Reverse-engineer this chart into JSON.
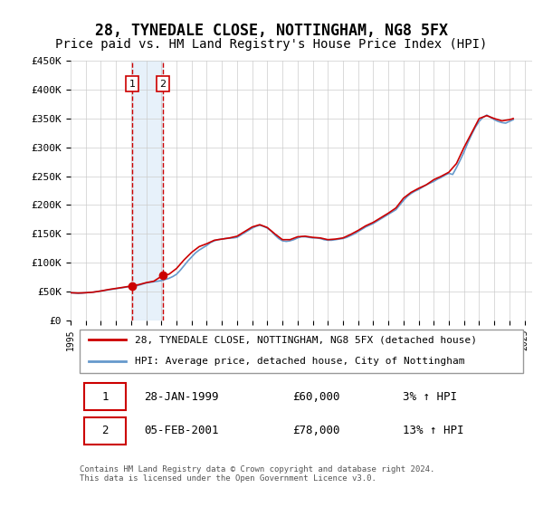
{
  "title": "28, TYNEDALE CLOSE, NOTTINGHAM, NG8 5FX",
  "subtitle": "Price paid vs. HM Land Registry's House Price Index (HPI)",
  "title_fontsize": 12,
  "subtitle_fontsize": 10,
  "ylabel_ticks": [
    "£0",
    "£50K",
    "£100K",
    "£150K",
    "£200K",
    "£250K",
    "£300K",
    "£350K",
    "£400K",
    "£450K"
  ],
  "ylim": [
    0,
    450000
  ],
  "ytick_vals": [
    0,
    50000,
    100000,
    150000,
    200000,
    250000,
    300000,
    350000,
    400000,
    450000
  ],
  "xmin": 1995.0,
  "xmax": 2025.5,
  "sale1_x": 1999.08,
  "sale1_y": 60000,
  "sale1_label": "1",
  "sale2_x": 2001.09,
  "sale2_y": 78000,
  "sale2_label": "2",
  "red_line_color": "#cc0000",
  "blue_line_color": "#6699cc",
  "shade_color": "#d0e4f7",
  "dashed_color": "#cc0000",
  "legend_label_red": "28, TYNEDALE CLOSE, NOTTINGHAM, NG8 5FX (detached house)",
  "legend_label_blue": "HPI: Average price, detached house, City of Nottingham",
  "table_row1": [
    "1",
    "28-JAN-1999",
    "£60,000",
    "3% ↑ HPI"
  ],
  "table_row2": [
    "2",
    "05-FEB-2001",
    "£78,000",
    "13% ↑ HPI"
  ],
  "footer": "Contains HM Land Registry data © Crown copyright and database right 2024.\nThis data is licensed under the Open Government Licence v3.0.",
  "hpi_data": {
    "years": [
      1995.0,
      1995.25,
      1995.5,
      1995.75,
      1996.0,
      1996.25,
      1996.5,
      1996.75,
      1997.0,
      1997.25,
      1997.5,
      1997.75,
      1998.0,
      1998.25,
      1998.5,
      1998.75,
      1999.0,
      1999.25,
      1999.5,
      1999.75,
      2000.0,
      2000.25,
      2000.5,
      2000.75,
      2001.0,
      2001.25,
      2001.5,
      2001.75,
      2002.0,
      2002.25,
      2002.5,
      2002.75,
      2003.0,
      2003.25,
      2003.5,
      2003.75,
      2004.0,
      2004.25,
      2004.5,
      2004.75,
      2005.0,
      2005.25,
      2005.5,
      2005.75,
      2006.0,
      2006.25,
      2006.5,
      2006.75,
      2007.0,
      2007.25,
      2007.5,
      2007.75,
      2008.0,
      2008.25,
      2008.5,
      2008.75,
      2009.0,
      2009.25,
      2009.5,
      2009.75,
      2010.0,
      2010.25,
      2010.5,
      2010.75,
      2011.0,
      2011.25,
      2011.5,
      2011.75,
      2012.0,
      2012.25,
      2012.5,
      2012.75,
      2013.0,
      2013.25,
      2013.5,
      2013.75,
      2014.0,
      2014.25,
      2014.5,
      2014.75,
      2015.0,
      2015.25,
      2015.5,
      2015.75,
      2016.0,
      2016.25,
      2016.5,
      2016.75,
      2017.0,
      2017.25,
      2017.5,
      2017.75,
      2018.0,
      2018.25,
      2018.5,
      2018.75,
      2019.0,
      2019.25,
      2019.5,
      2019.75,
      2020.0,
      2020.25,
      2020.5,
      2020.75,
      2021.0,
      2021.25,
      2021.5,
      2021.75,
      2022.0,
      2022.25,
      2022.5,
      2022.75,
      2023.0,
      2023.25,
      2023.5,
      2023.75,
      2024.0,
      2024.25
    ],
    "values": [
      48000,
      47500,
      47000,
      47200,
      48000,
      48500,
      49000,
      50000,
      51000,
      52000,
      53000,
      54000,
      55000,
      56000,
      57000,
      58000,
      58500,
      59500,
      61000,
      63000,
      65000,
      66000,
      67000,
      68000,
      69000,
      71000,
      73000,
      76000,
      80000,
      87000,
      95000,
      103000,
      110000,
      117000,
      122000,
      126000,
      130000,
      135000,
      138000,
      140000,
      141000,
      142000,
      142500,
      143000,
      144000,
      148000,
      152000,
      156000,
      160000,
      163000,
      165000,
      163000,
      160000,
      155000,
      148000,
      142000,
      138000,
      137000,
      138000,
      140000,
      143000,
      145000,
      145000,
      144000,
      143000,
      143000,
      142000,
      140000,
      139000,
      139000,
      140000,
      141000,
      142000,
      144000,
      147000,
      150000,
      154000,
      158000,
      162000,
      165000,
      168000,
      172000,
      176000,
      180000,
      184000,
      188000,
      192000,
      200000,
      208000,
      215000,
      220000,
      224000,
      227000,
      231000,
      235000,
      238000,
      241000,
      245000,
      248000,
      252000,
      255000,
      253000,
      265000,
      278000,
      292000,
      308000,
      322000,
      335000,
      345000,
      352000,
      356000,
      352000,
      348000,
      345000,
      343000,
      342000,
      345000,
      348000
    ]
  },
  "property_data": {
    "years": [
      1995.0,
      1995.5,
      1996.0,
      1996.5,
      1997.0,
      1997.5,
      1998.0,
      1998.5,
      1999.08,
      1999.5,
      2000.0,
      2000.5,
      2001.09,
      2001.5,
      2002.0,
      2002.5,
      2003.0,
      2003.5,
      2004.0,
      2004.5,
      2005.0,
      2005.5,
      2006.0,
      2006.5,
      2007.0,
      2007.5,
      2008.0,
      2008.5,
      2009.0,
      2009.5,
      2010.0,
      2010.5,
      2011.0,
      2011.5,
      2012.0,
      2012.5,
      2013.0,
      2013.5,
      2014.0,
      2014.5,
      2015.0,
      2015.5,
      2016.0,
      2016.5,
      2017.0,
      2017.5,
      2018.0,
      2018.5,
      2019.0,
      2019.5,
      2020.0,
      2020.5,
      2021.0,
      2021.5,
      2022.0,
      2022.5,
      2023.0,
      2023.5,
      2024.0,
      2024.25
    ],
    "values": [
      48000,
      47500,
      48000,
      49000,
      51000,
      53500,
      55500,
      57500,
      60000,
      62000,
      65500,
      68000,
      78000,
      80000,
      90000,
      105000,
      118000,
      128000,
      133000,
      139000,
      141000,
      143000,
      146000,
      154000,
      162000,
      166000,
      161000,
      150000,
      140000,
      140000,
      145000,
      146000,
      144000,
      143000,
      140000,
      141000,
      143000,
      149000,
      156000,
      164000,
      170000,
      178000,
      186000,
      195000,
      212000,
      222000,
      229000,
      235000,
      244000,
      250000,
      257000,
      272000,
      300000,
      325000,
      350000,
      355000,
      350000,
      346000,
      348000,
      350000
    ]
  }
}
